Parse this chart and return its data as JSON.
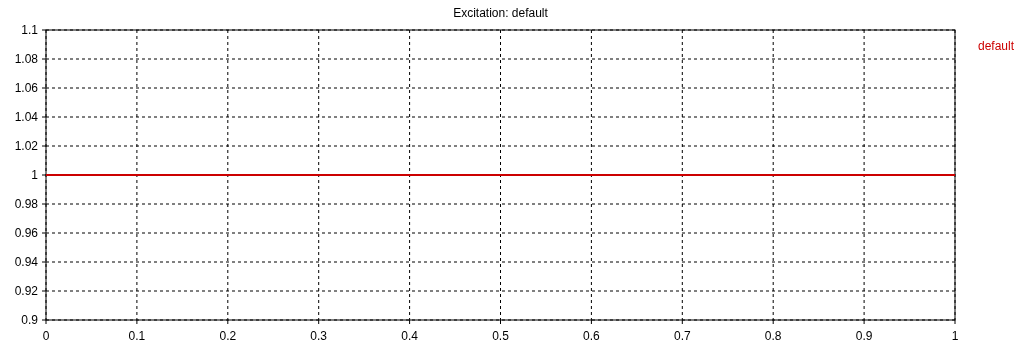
{
  "chart_data": {
    "type": "line",
    "title": "Excitation: default",
    "x": [
      0,
      1
    ],
    "series": [
      {
        "name": "default",
        "color": "#cc0000",
        "values": [
          1,
          1
        ]
      }
    ],
    "xlim": [
      0,
      1
    ],
    "xticks": [
      0,
      0.1,
      0.2,
      0.3,
      0.4,
      0.5,
      0.6,
      0.7,
      0.8,
      0.9,
      1
    ],
    "ylim": [
      0.9,
      1.1
    ],
    "yticks": [
      0.9,
      0.92,
      0.94,
      0.96,
      0.98,
      1,
      1.02,
      1.04,
      1.06,
      1.08,
      1.1
    ],
    "grid": true,
    "legend": "top right",
    "line_style": "solid",
    "marker": "none"
  }
}
